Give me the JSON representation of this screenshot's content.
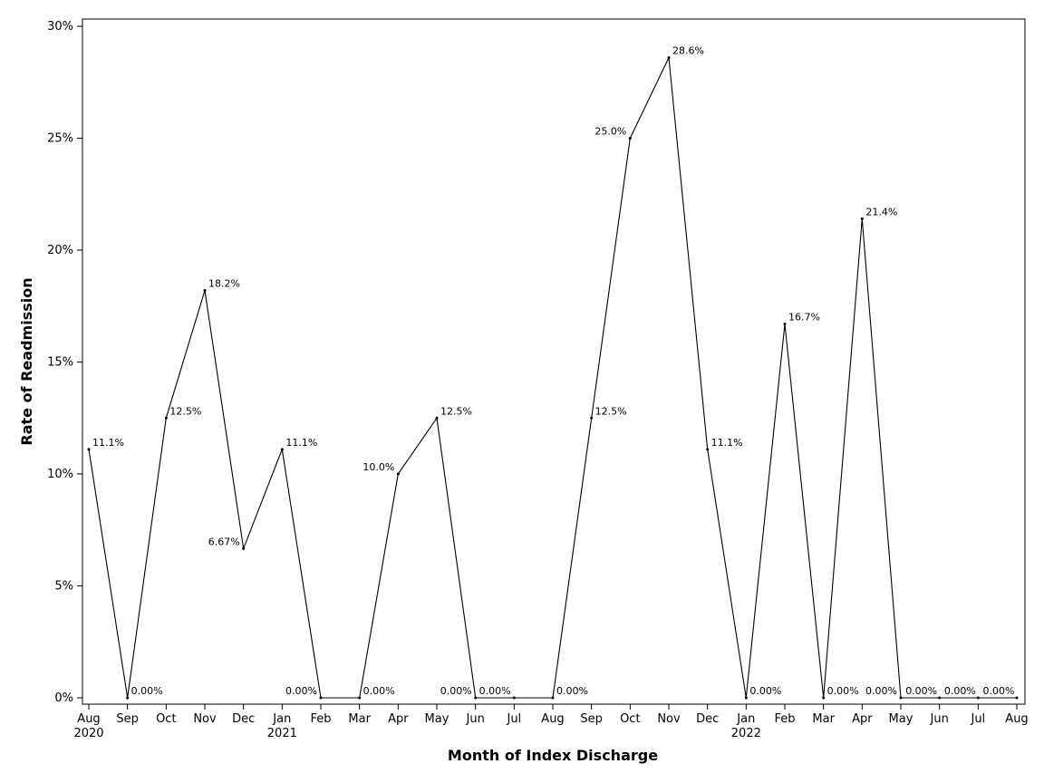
{
  "chart_data": {
    "type": "line",
    "xlabel": "Month of Index Discharge",
    "ylabel": "Rate of Readmission",
    "ylim": [
      0,
      30
    ],
    "yticks": [
      "0%",
      "5%",
      "10%",
      "15%",
      "20%",
      "25%",
      "30%"
    ],
    "ytick_values": [
      0,
      5,
      10,
      15,
      20,
      25,
      30
    ],
    "grid": false,
    "x": [
      "Aug 2020",
      "Sep 2020",
      "Oct 2020",
      "Nov 2020",
      "Dec 2020",
      "Jan 2021",
      "Feb 2021",
      "Mar 2021",
      "Apr 2021",
      "May 2021",
      "Jun 2021",
      "Jul 2021",
      "Aug 2021",
      "Sep 2021",
      "Oct 2021",
      "Nov 2021",
      "Dec 2021",
      "Jan 2022",
      "Feb 2022",
      "Mar 2022",
      "Apr 2022",
      "May 2022",
      "Jun 2022",
      "Jul 2022",
      "Aug 2022"
    ],
    "tick_labels": [
      "Aug",
      "Sep",
      "Oct",
      "Nov",
      "Dec",
      "Jan",
      "Feb",
      "Mar",
      "Apr",
      "May",
      "Jun",
      "Jul",
      "Aug",
      "Sep",
      "Oct",
      "Nov",
      "Dec",
      "Jan",
      "Feb",
      "Mar",
      "Apr",
      "May",
      "Jun",
      "Jul",
      "Aug"
    ],
    "year_labels": [
      {
        "index": 0,
        "label": "2020"
      },
      {
        "index": 5,
        "label": "2021"
      },
      {
        "index": 17,
        "label": "2022"
      }
    ],
    "series": [
      {
        "values": [
          11.1,
          0,
          12.5,
          18.2,
          6.67,
          11.1,
          0,
          0,
          10.0,
          12.5,
          0,
          0,
          0,
          12.5,
          25.0,
          28.6,
          11.1,
          0,
          16.7,
          0,
          21.4,
          0,
          0,
          0,
          0
        ],
        "point_labels": [
          {
            "index": 0,
            "text": "11.1%",
            "pos": "right"
          },
          {
            "index": 1,
            "text": "0.00%",
            "pos": "right"
          },
          {
            "index": 2,
            "text": "12.5%",
            "pos": "right"
          },
          {
            "index": 3,
            "text": "18.2%",
            "pos": "right"
          },
          {
            "index": 4,
            "text": "6.67%",
            "pos": "left"
          },
          {
            "index": 5,
            "text": "11.1%",
            "pos": "right"
          },
          {
            "index": 6,
            "text": "0.00%",
            "pos": "left"
          },
          {
            "index": 7,
            "text": "0.00%",
            "pos": "right"
          },
          {
            "index": 8,
            "text": "10.0%",
            "pos": "left"
          },
          {
            "index": 9,
            "text": "12.5%",
            "pos": "right"
          },
          {
            "index": 10,
            "text": "0.00%",
            "pos": "left"
          },
          {
            "index": 10,
            "text": "0.00%",
            "pos": "right"
          },
          {
            "index": 12,
            "text": "0.00%",
            "pos": "right"
          },
          {
            "index": 13,
            "text": "12.5%",
            "pos": "right"
          },
          {
            "index": 14,
            "text": "25.0%",
            "pos": "left"
          },
          {
            "index": 15,
            "text": "28.6%",
            "pos": "right"
          },
          {
            "index": 16,
            "text": "11.1%",
            "pos": "right"
          },
          {
            "index": 17,
            "text": "0.00%",
            "pos": "right"
          },
          {
            "index": 18,
            "text": "16.7%",
            "pos": "right"
          },
          {
            "index": 19,
            "text": "0.00%",
            "pos": "right"
          },
          {
            "index": 20,
            "text": "21.4%",
            "pos": "right"
          },
          {
            "index": 21,
            "text": "0.00%",
            "pos": "left"
          },
          {
            "index": 22,
            "text": "0.00%",
            "pos": "center"
          },
          {
            "index": 23,
            "text": "0.00%",
            "pos": "center"
          },
          {
            "index": 24,
            "text": "0.00%",
            "pos": "center"
          }
        ]
      }
    ]
  }
}
